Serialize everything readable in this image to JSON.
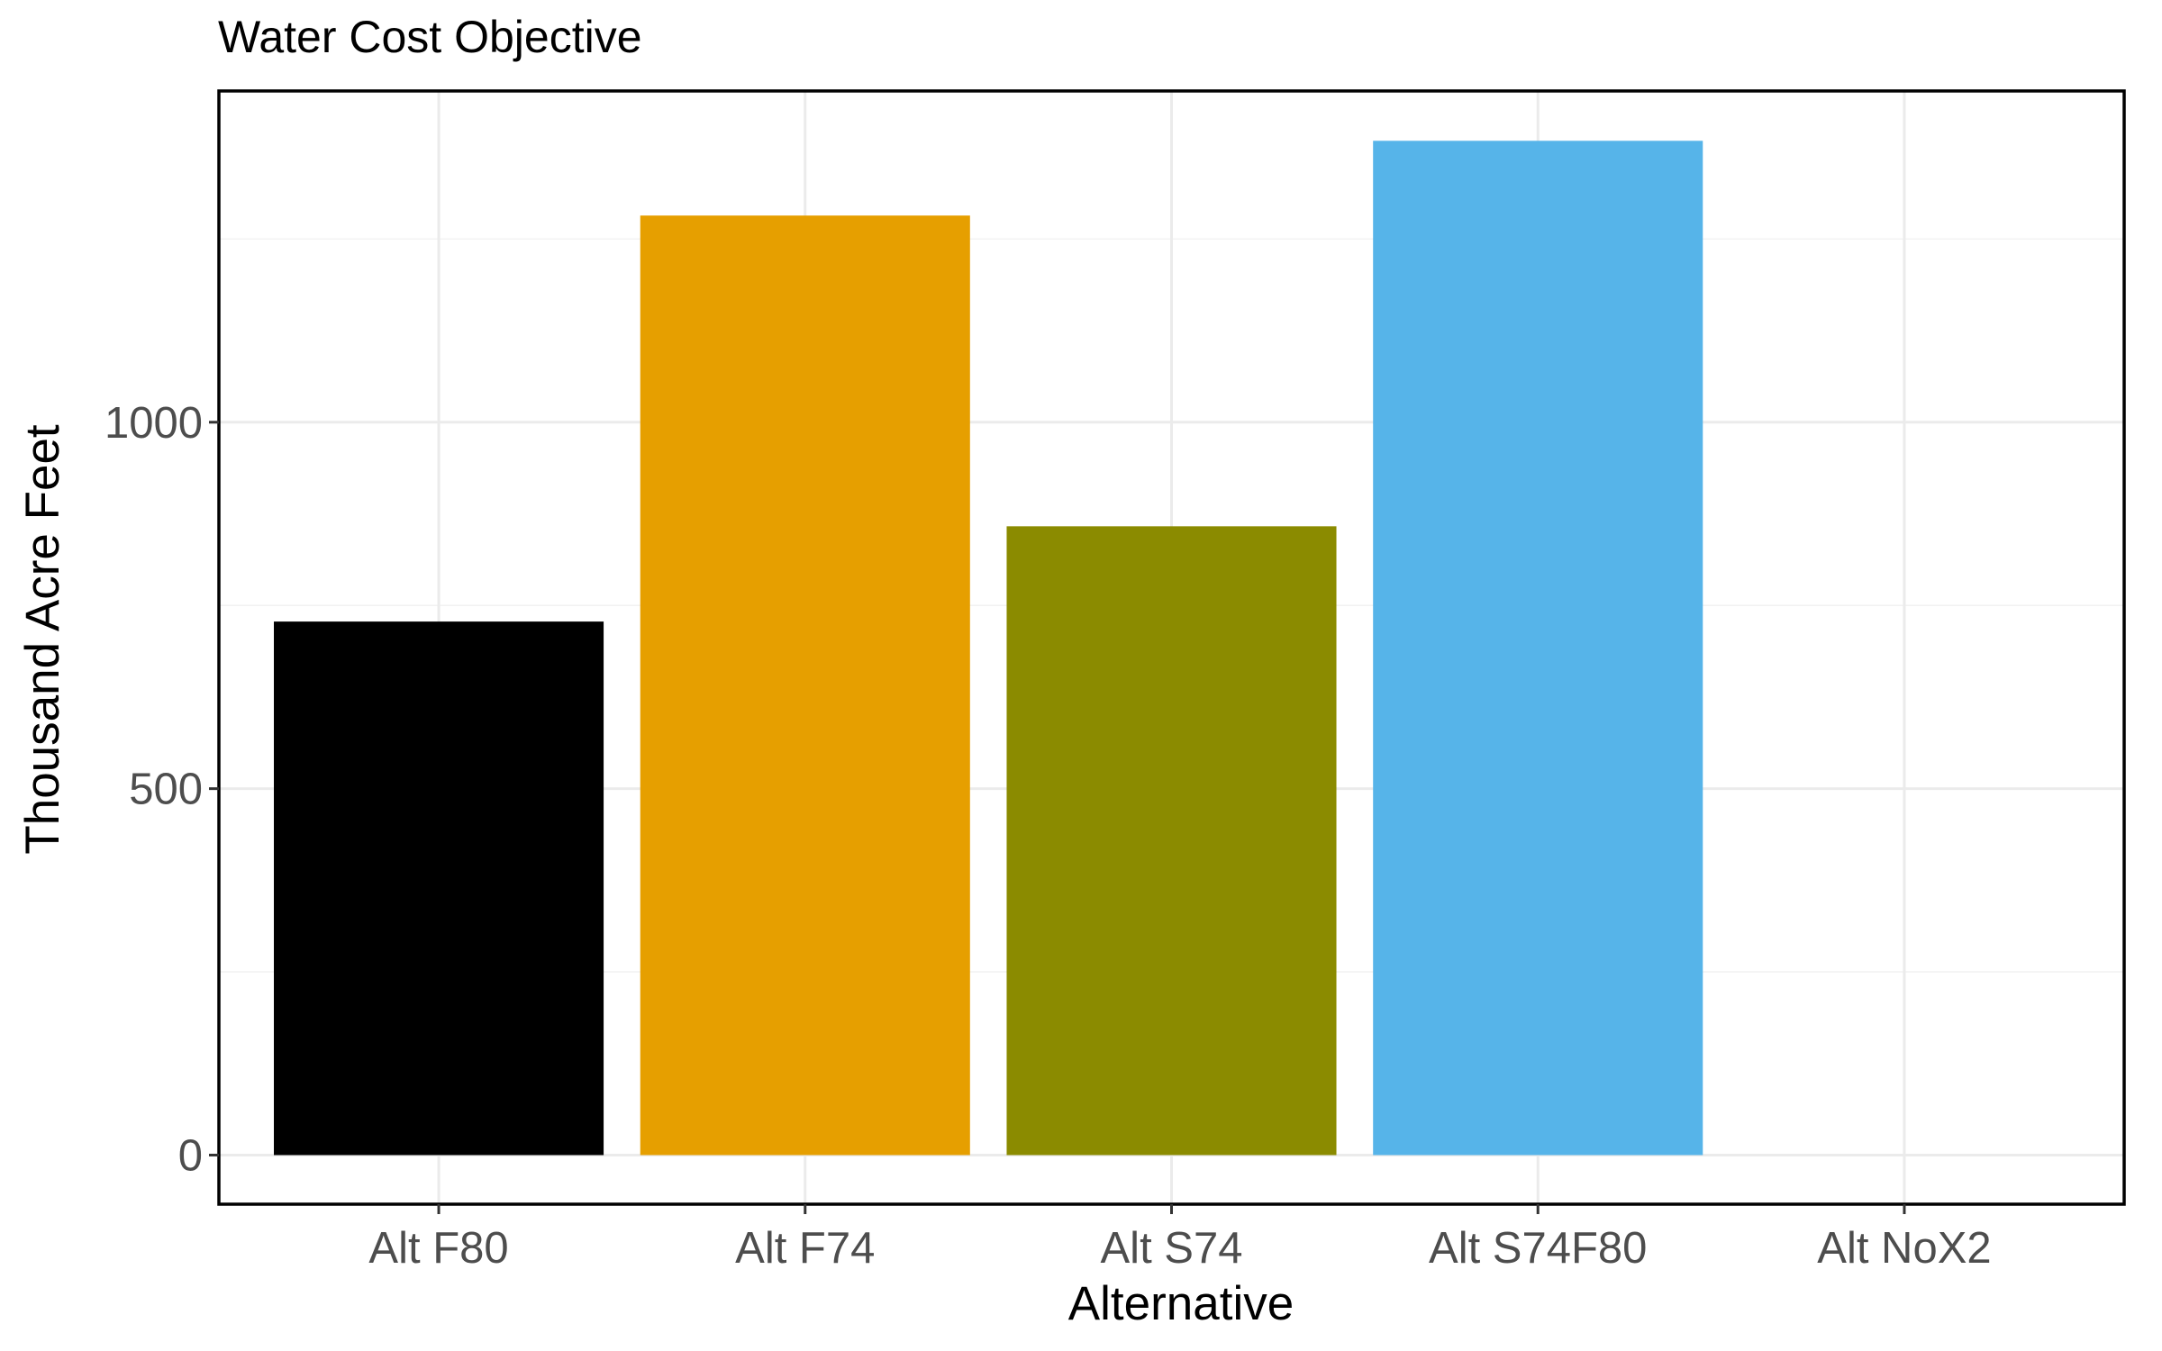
{
  "chart_data": {
    "type": "bar",
    "title": "Water Cost Objective",
    "xlabel": "Alternative",
    "ylabel": "Thousand Acre Feet",
    "categories": [
      "Alt F80",
      "Alt F74",
      "Alt S74",
      "Alt S74F80",
      "Alt NoX2"
    ],
    "values": [
      728,
      1282,
      858,
      1384,
      0
    ],
    "colors": [
      "#000000",
      "#E69F00",
      "#8B8B00",
      "#56B4E9",
      "#009E73"
    ],
    "ylim": [
      -67,
      1452
    ],
    "y_ticks": [
      0,
      500,
      1000
    ],
    "y_tick_labels": [
      "0",
      "500",
      "1000"
    ],
    "grid": true,
    "legend": "none"
  }
}
